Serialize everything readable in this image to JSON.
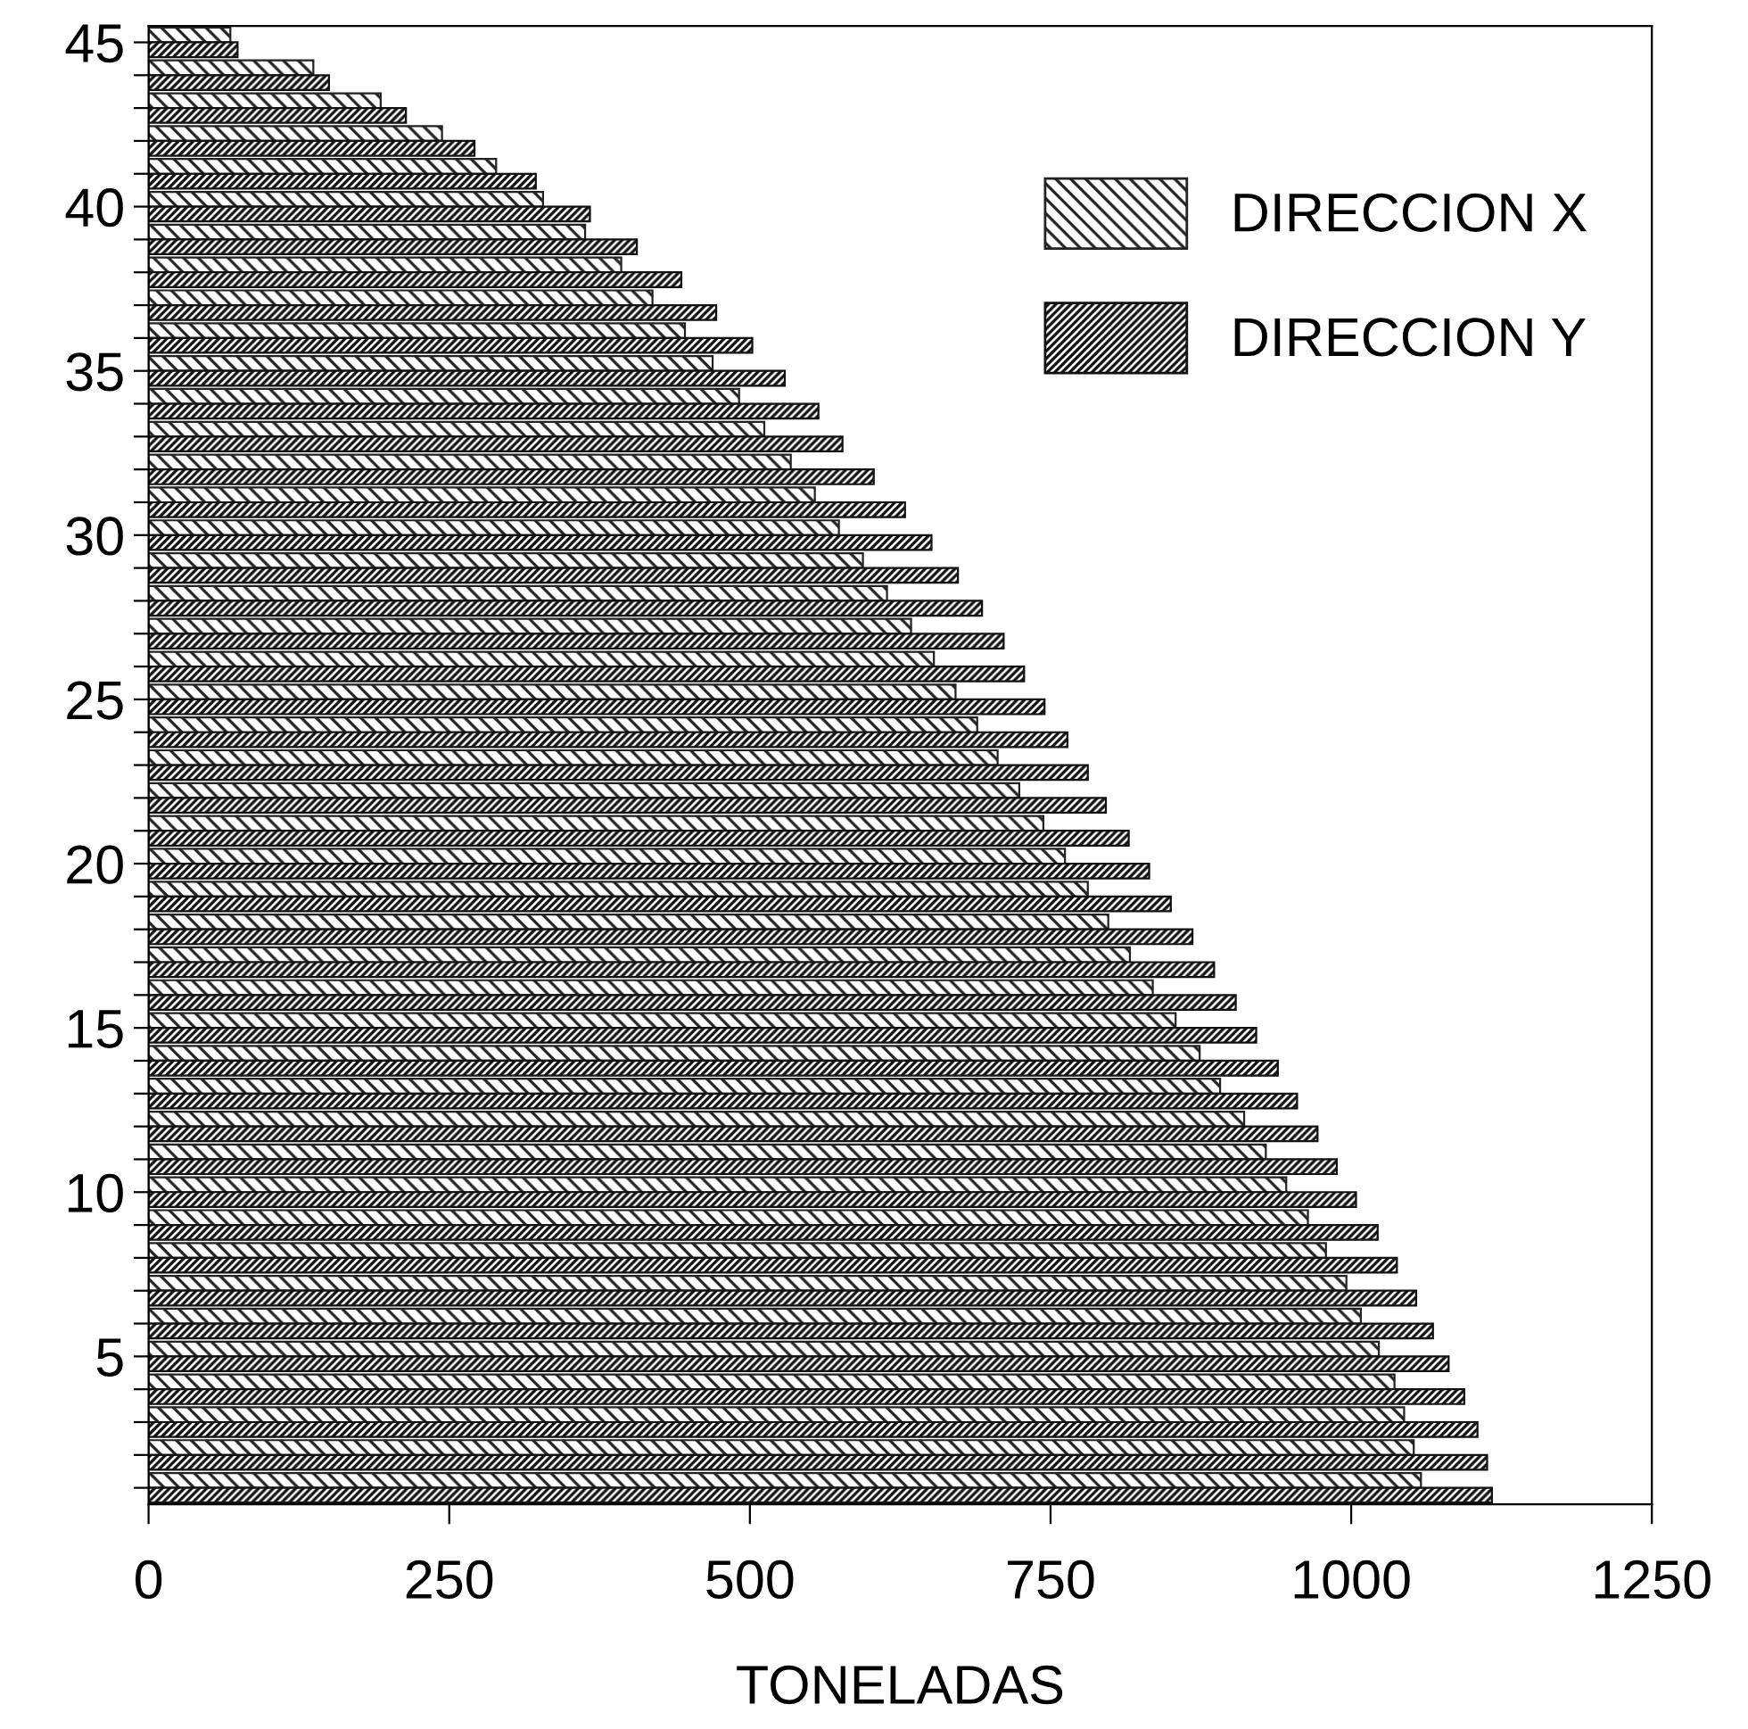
{
  "chart_data": {
    "type": "bar",
    "orientation": "horizontal",
    "xlabel": "TONELADAS",
    "categories": [
      "45",
      null,
      null,
      null,
      null,
      "40",
      null,
      null,
      null,
      null,
      "35",
      null,
      null,
      null,
      null,
      "30",
      null,
      null,
      null,
      null,
      "25",
      null,
      null,
      null,
      null,
      "20",
      null,
      null,
      null,
      null,
      "15",
      null,
      null,
      null,
      null,
      "10",
      null,
      null,
      null,
      null,
      "5",
      null,
      null,
      null,
      null
    ],
    "series": [
      {
        "name": "DIRECCION X",
        "color": "#222222",
        "values": [
          68,
          137,
          193,
          244,
          289,
          328,
          363,
          393,
          419,
          446,
          469,
          491,
          512,
          534,
          554,
          574,
          594,
          614,
          634,
          653,
          671,
          689,
          706,
          724,
          744,
          762,
          781,
          798,
          816,
          835,
          854,
          874,
          891,
          911,
          929,
          946,
          964,
          979,
          996,
          1008,
          1023,
          1036,
          1044,
          1052,
          1058
        ]
      },
      {
        "name": "DIRECCION Y",
        "color": "#111111",
        "values": [
          74,
          150,
          214,
          271,
          322,
          367,
          406,
          443,
          472,
          502,
          529,
          557,
          577,
          603,
          629,
          651,
          673,
          693,
          711,
          728,
          745,
          764,
          781,
          796,
          815,
          832,
          850,
          868,
          886,
          904,
          921,
          939,
          955,
          972,
          988,
          1004,
          1022,
          1038,
          1054,
          1068,
          1081,
          1094,
          1105,
          1113,
          1117
        ]
      }
    ],
    "xlim": [
      0,
      1250
    ],
    "xticks": [
      0,
      250,
      500,
      750,
      1000,
      1250
    ],
    "grid": false,
    "legend": "top right"
  }
}
